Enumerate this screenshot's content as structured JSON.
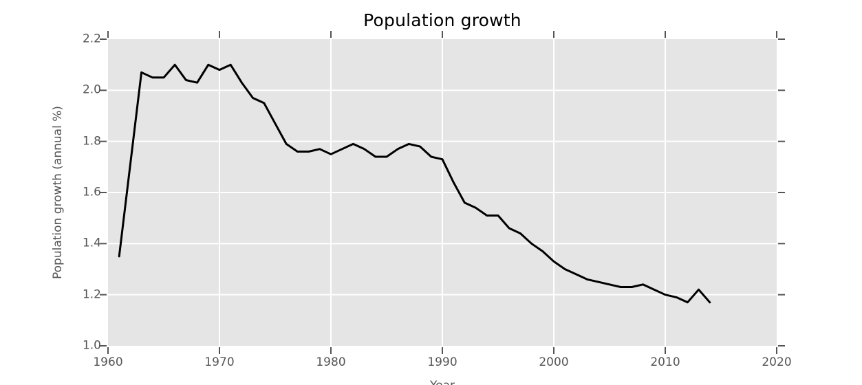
{
  "chart_data": {
    "type": "line",
    "title": "Population growth",
    "xlabel": "Year",
    "ylabel": "Population growth (annual %)",
    "xlim": [
      1960,
      2020
    ],
    "ylim": [
      1.0,
      2.2
    ],
    "grid": true,
    "legend_position": "none",
    "x_ticks": [
      1960,
      1970,
      1980,
      1990,
      2000,
      2010,
      2020
    ],
    "x_tick_labels": [
      "1960",
      "1970",
      "1980",
      "1990",
      "2000",
      "2010",
      "2020"
    ],
    "y_ticks": [
      2.2,
      2.0,
      1.8,
      1.6,
      1.4,
      1.2,
      1.0
    ],
    "y_tick_labels": [
      "2.2",
      "2.0",
      "1.8",
      "1.6",
      "1.4",
      "1.2",
      "1.0"
    ],
    "x_grid": [
      1970,
      1980,
      1990,
      2000,
      2010
    ],
    "y_grid": [
      2.0,
      1.8,
      1.6,
      1.4,
      1.2
    ],
    "series": [
      {
        "name": "Population growth (annual %)",
        "x": [
          1961,
          1962,
          1963,
          1964,
          1965,
          1966,
          1967,
          1968,
          1969,
          1970,
          1971,
          1972,
          1973,
          1974,
          1975,
          1976,
          1977,
          1978,
          1979,
          1980,
          1981,
          1982,
          1983,
          1984,
          1985,
          1986,
          1987,
          1988,
          1989,
          1990,
          1991,
          1992,
          1993,
          1994,
          1995,
          1996,
          1997,
          1998,
          1999,
          2000,
          2001,
          2002,
          2003,
          2004,
          2005,
          2006,
          2007,
          2008,
          2009,
          2010,
          2011,
          2012,
          2013,
          2014
        ],
        "values": [
          1.35,
          1.71,
          2.07,
          2.05,
          2.05,
          2.1,
          2.04,
          2.03,
          2.1,
          2.08,
          2.1,
          2.03,
          1.97,
          1.95,
          1.87,
          1.79,
          1.76,
          1.76,
          1.77,
          1.75,
          1.77,
          1.79,
          1.77,
          1.74,
          1.74,
          1.77,
          1.79,
          1.78,
          1.74,
          1.73,
          1.64,
          1.56,
          1.54,
          1.51,
          1.51,
          1.46,
          1.44,
          1.4,
          1.37,
          1.33,
          1.3,
          1.28,
          1.26,
          1.25,
          1.24,
          1.23,
          1.23,
          1.24,
          1.22,
          1.2,
          1.19,
          1.17,
          1.22,
          1.17
        ]
      }
    ],
    "colors": {
      "line": "#000000",
      "plot_bg": "#e5e5e5",
      "grid": "#ffffff",
      "tick": "#555555",
      "tick_label": "#555555",
      "title": "#000000",
      "axis_label": "#555555"
    }
  }
}
